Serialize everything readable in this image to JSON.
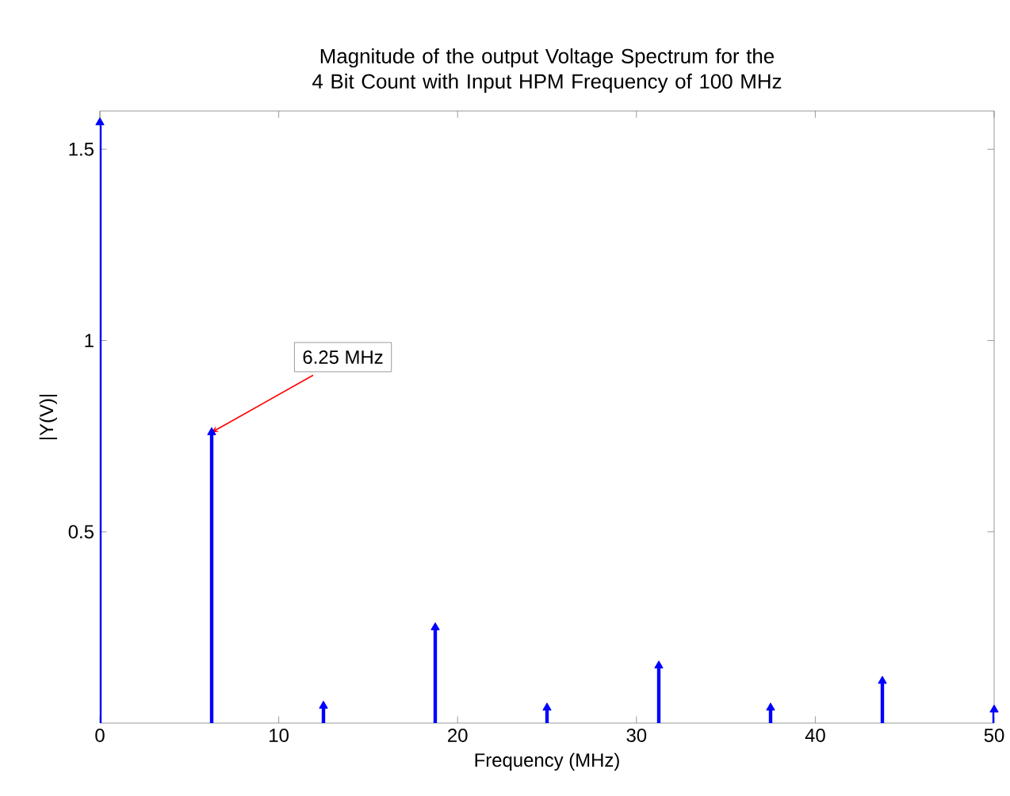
{
  "chart_data": {
    "type": "lollipop",
    "title": "Magnitude of the output Voltage Spectrum for the 4 Bit Count with Input HPM Frequency of 100 MHz",
    "xlabel": "Frequency (MHz)",
    "ylabel": "|Y(V)|",
    "x": [
      0,
      6.25,
      12.5,
      18.75,
      25,
      31.25,
      37.5,
      43.75,
      50
    ],
    "series": [
      {
        "color": "#0000ff",
        "values": [
          1.57,
          0.76,
          0.045,
          0.25,
          0.04,
          0.15,
          0.04,
          0.11,
          0.035
        ]
      }
    ],
    "xlim": [
      0,
      50
    ],
    "xticks": [
      0,
      10,
      20,
      30,
      40,
      50
    ],
    "ylim": [
      0,
      1.6
    ],
    "yticks": [
      0.5,
      1,
      1.5
    ],
    "marker": "triangle",
    "annotations": [
      {
        "text": "6.25 MHz",
        "x": 6.25,
        "y": 0.76
      }
    ]
  }
}
